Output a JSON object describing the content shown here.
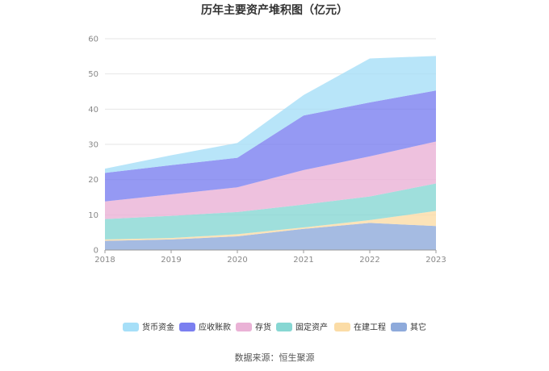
{
  "chart_data": {
    "type": "area",
    "stacked": true,
    "title": "历年主要资产堆积图（亿元）",
    "xlabel": "",
    "ylabel": "",
    "categories": [
      "2018",
      "2019",
      "2020",
      "2021",
      "2022",
      "2023"
    ],
    "ylim": [
      0,
      60
    ],
    "yticks": [
      0,
      10,
      20,
      30,
      40,
      50,
      60
    ],
    "grid": true,
    "legend_position": "bottom",
    "series": [
      {
        "name": "其它",
        "color": "#8eaadb",
        "values": [
          2.6,
          3.0,
          3.9,
          6.0,
          7.7,
          6.8
        ]
      },
      {
        "name": "在建工程",
        "color": "#fbdca6",
        "values": [
          0.4,
          0.4,
          0.6,
          0.4,
          0.8,
          4.3
        ]
      },
      {
        "name": "固定资产",
        "color": "#87d7d3",
        "values": [
          5.8,
          6.3,
          6.3,
          6.5,
          6.7,
          7.8
        ]
      },
      {
        "name": "存货",
        "color": "#eab2d6",
        "values": [
          5.0,
          6.1,
          7.0,
          9.8,
          11.4,
          11.9
        ]
      },
      {
        "name": "应收账款",
        "color": "#7b7ff0",
        "values": [
          8.1,
          8.3,
          8.4,
          15.5,
          15.3,
          14.5
        ]
      },
      {
        "name": "货币资金",
        "color": "#a6dff8",
        "values": [
          1.2,
          2.8,
          4.2,
          5.8,
          12.5,
          9.8
        ]
      }
    ],
    "legend_order": [
      "货币资金",
      "应收账款",
      "存货",
      "固定资产",
      "在建工程",
      "其它"
    ]
  },
  "footer": {
    "source_text": "数据来源：恒生聚源"
  }
}
